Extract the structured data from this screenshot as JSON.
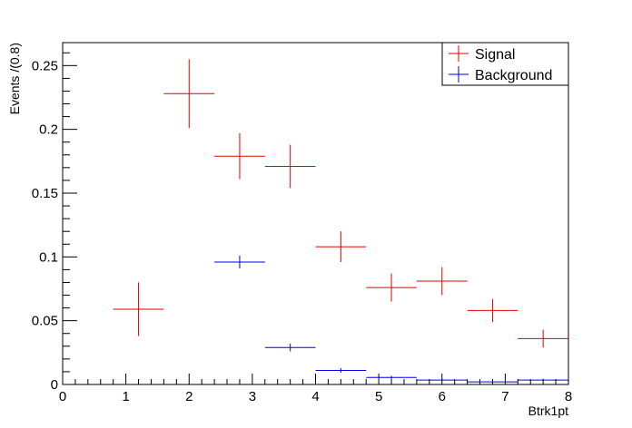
{
  "chart_data": {
    "type": "scatter",
    "subtype": "histogram-errorbars",
    "title": "",
    "xlabel": "Btrk1pt",
    "ylabel": "Events /(0.8)",
    "xlim": [
      0,
      8
    ],
    "ylim": [
      0,
      0.268
    ],
    "x_major_ticks": [
      0,
      1,
      2,
      3,
      4,
      5,
      6,
      7,
      8
    ],
    "x_tick_labels": [
      "0",
      "1",
      "2",
      "3",
      "4",
      "5",
      "6",
      "7",
      "8"
    ],
    "y_major_ticks": [
      0,
      0.05,
      0.1,
      0.15,
      0.2,
      0.25
    ],
    "y_tick_labels": [
      "0",
      "0.05",
      "0.1",
      "0.15",
      "0.2",
      "0.25"
    ],
    "bin_width": 0.8,
    "grid": false,
    "legend": {
      "placement": "top-right",
      "entries": [
        "Signal",
        "Background"
      ]
    },
    "series": [
      {
        "name": "Signal",
        "color": "#e00000",
        "x": [
          1.2,
          2.0,
          2.8,
          3.6,
          4.4,
          5.2,
          6.0,
          6.8,
          7.6
        ],
        "y": [
          0.059,
          0.228,
          0.179,
          0.171,
          0.108,
          0.076,
          0.081,
          0.058,
          0.036
        ],
        "yerr": [
          0.021,
          0.027,
          0.018,
          0.017,
          0.012,
          0.011,
          0.011,
          0.009,
          0.007
        ]
      },
      {
        "name": "Background",
        "color": "#0000e0",
        "x": [
          2.8,
          3.6,
          4.4,
          5.2,
          6.0,
          6.8,
          7.6
        ],
        "y": [
          0.096,
          0.029,
          0.011,
          0.0055,
          0.0035,
          0.002,
          0.0035
        ],
        "yerr": [
          0.005,
          0.003,
          0.0018,
          0.0013,
          0.001,
          0.0008,
          0.001
        ]
      }
    ]
  }
}
